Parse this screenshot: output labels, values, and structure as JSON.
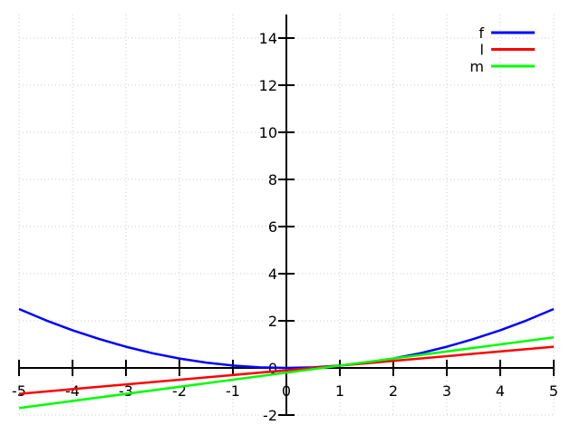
{
  "chart_data": {
    "type": "line",
    "title": "",
    "xlabel": "",
    "ylabel": "",
    "x_range": [
      -5,
      5
    ],
    "y_range": [
      -2,
      15
    ],
    "x_ticks": [
      -5,
      -4,
      -3,
      -2,
      -1,
      0,
      1,
      2,
      3,
      4,
      5
    ],
    "y_ticks": [
      -2,
      0,
      2,
      4,
      6,
      8,
      10,
      12,
      14
    ],
    "grid": "dotted",
    "axes_through_origin": true,
    "legend": {
      "position": "top-right",
      "entries": [
        "f",
        "l",
        "m"
      ]
    },
    "series": [
      {
        "name": "f",
        "color": "#0000ff",
        "points": [
          [
            -5,
            2.5
          ],
          [
            -4.5,
            2.025
          ],
          [
            -4,
            1.6
          ],
          [
            -3.5,
            1.225
          ],
          [
            -3,
            0.9
          ],
          [
            -2.5,
            0.625
          ],
          [
            -2,
            0.4
          ],
          [
            -1.5,
            0.225
          ],
          [
            -1,
            0.1
          ],
          [
            -0.5,
            0.025
          ],
          [
            0,
            0
          ],
          [
            0.5,
            0.025
          ],
          [
            1,
            0.1
          ],
          [
            1.5,
            0.225
          ],
          [
            2,
            0.4
          ],
          [
            2.5,
            0.625
          ],
          [
            3,
            0.9
          ],
          [
            3.5,
            1.225
          ],
          [
            4,
            1.6
          ],
          [
            4.5,
            2.025
          ],
          [
            5,
            2.5
          ]
        ]
      },
      {
        "name": "l",
        "color": "#ff0000",
        "points": [
          [
            -5,
            -1.1
          ],
          [
            5,
            0.9
          ]
        ]
      },
      {
        "name": "m",
        "color": "#00ff00",
        "points": [
          [
            -5,
            -1.7
          ],
          [
            5,
            1.3
          ]
        ]
      }
    ]
  },
  "colors": {
    "background": "#ffffff",
    "grid": "#c8c8c8",
    "axis": "#000000",
    "text": "#000000"
  }
}
